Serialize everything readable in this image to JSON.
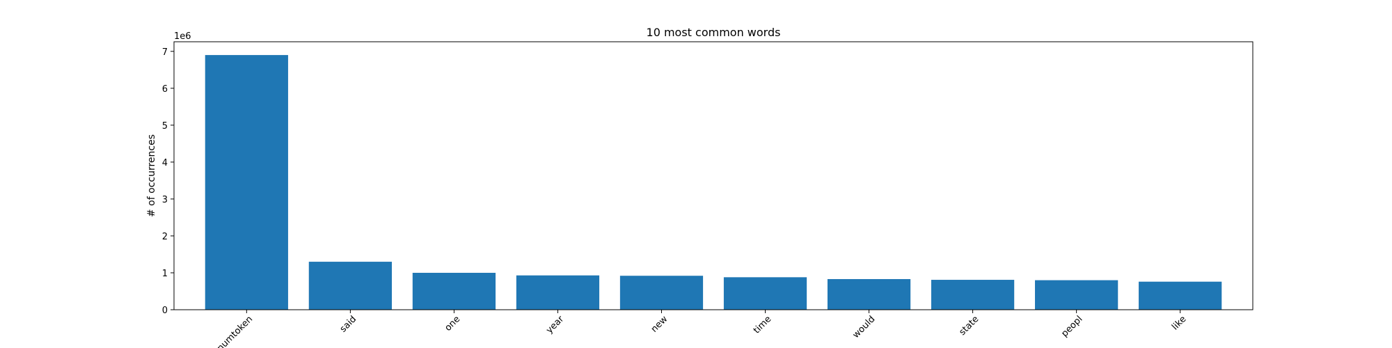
{
  "chart_data": {
    "type": "bar",
    "title": "10 most common words",
    "xlabel": "",
    "ylabel": "# of occurrences",
    "y_offset_label": "1e6",
    "categories": [
      "numtoken",
      "said",
      "one",
      "year",
      "new",
      "time",
      "would",
      "state",
      "peopl",
      "like"
    ],
    "values": [
      6900000,
      1300000,
      1000000,
      930000,
      920000,
      880000,
      830000,
      810000,
      800000,
      760000
    ],
    "ylim": [
      0,
      7260000
    ],
    "yticks": [
      0,
      1000000,
      2000000,
      3000000,
      4000000,
      5000000,
      6000000,
      7000000
    ],
    "ytick_labels": [
      "0",
      "1",
      "2",
      "3",
      "4",
      "5",
      "6",
      "7"
    ],
    "bar_color": "#1f77b4",
    "grid": false,
    "legend": "none"
  }
}
